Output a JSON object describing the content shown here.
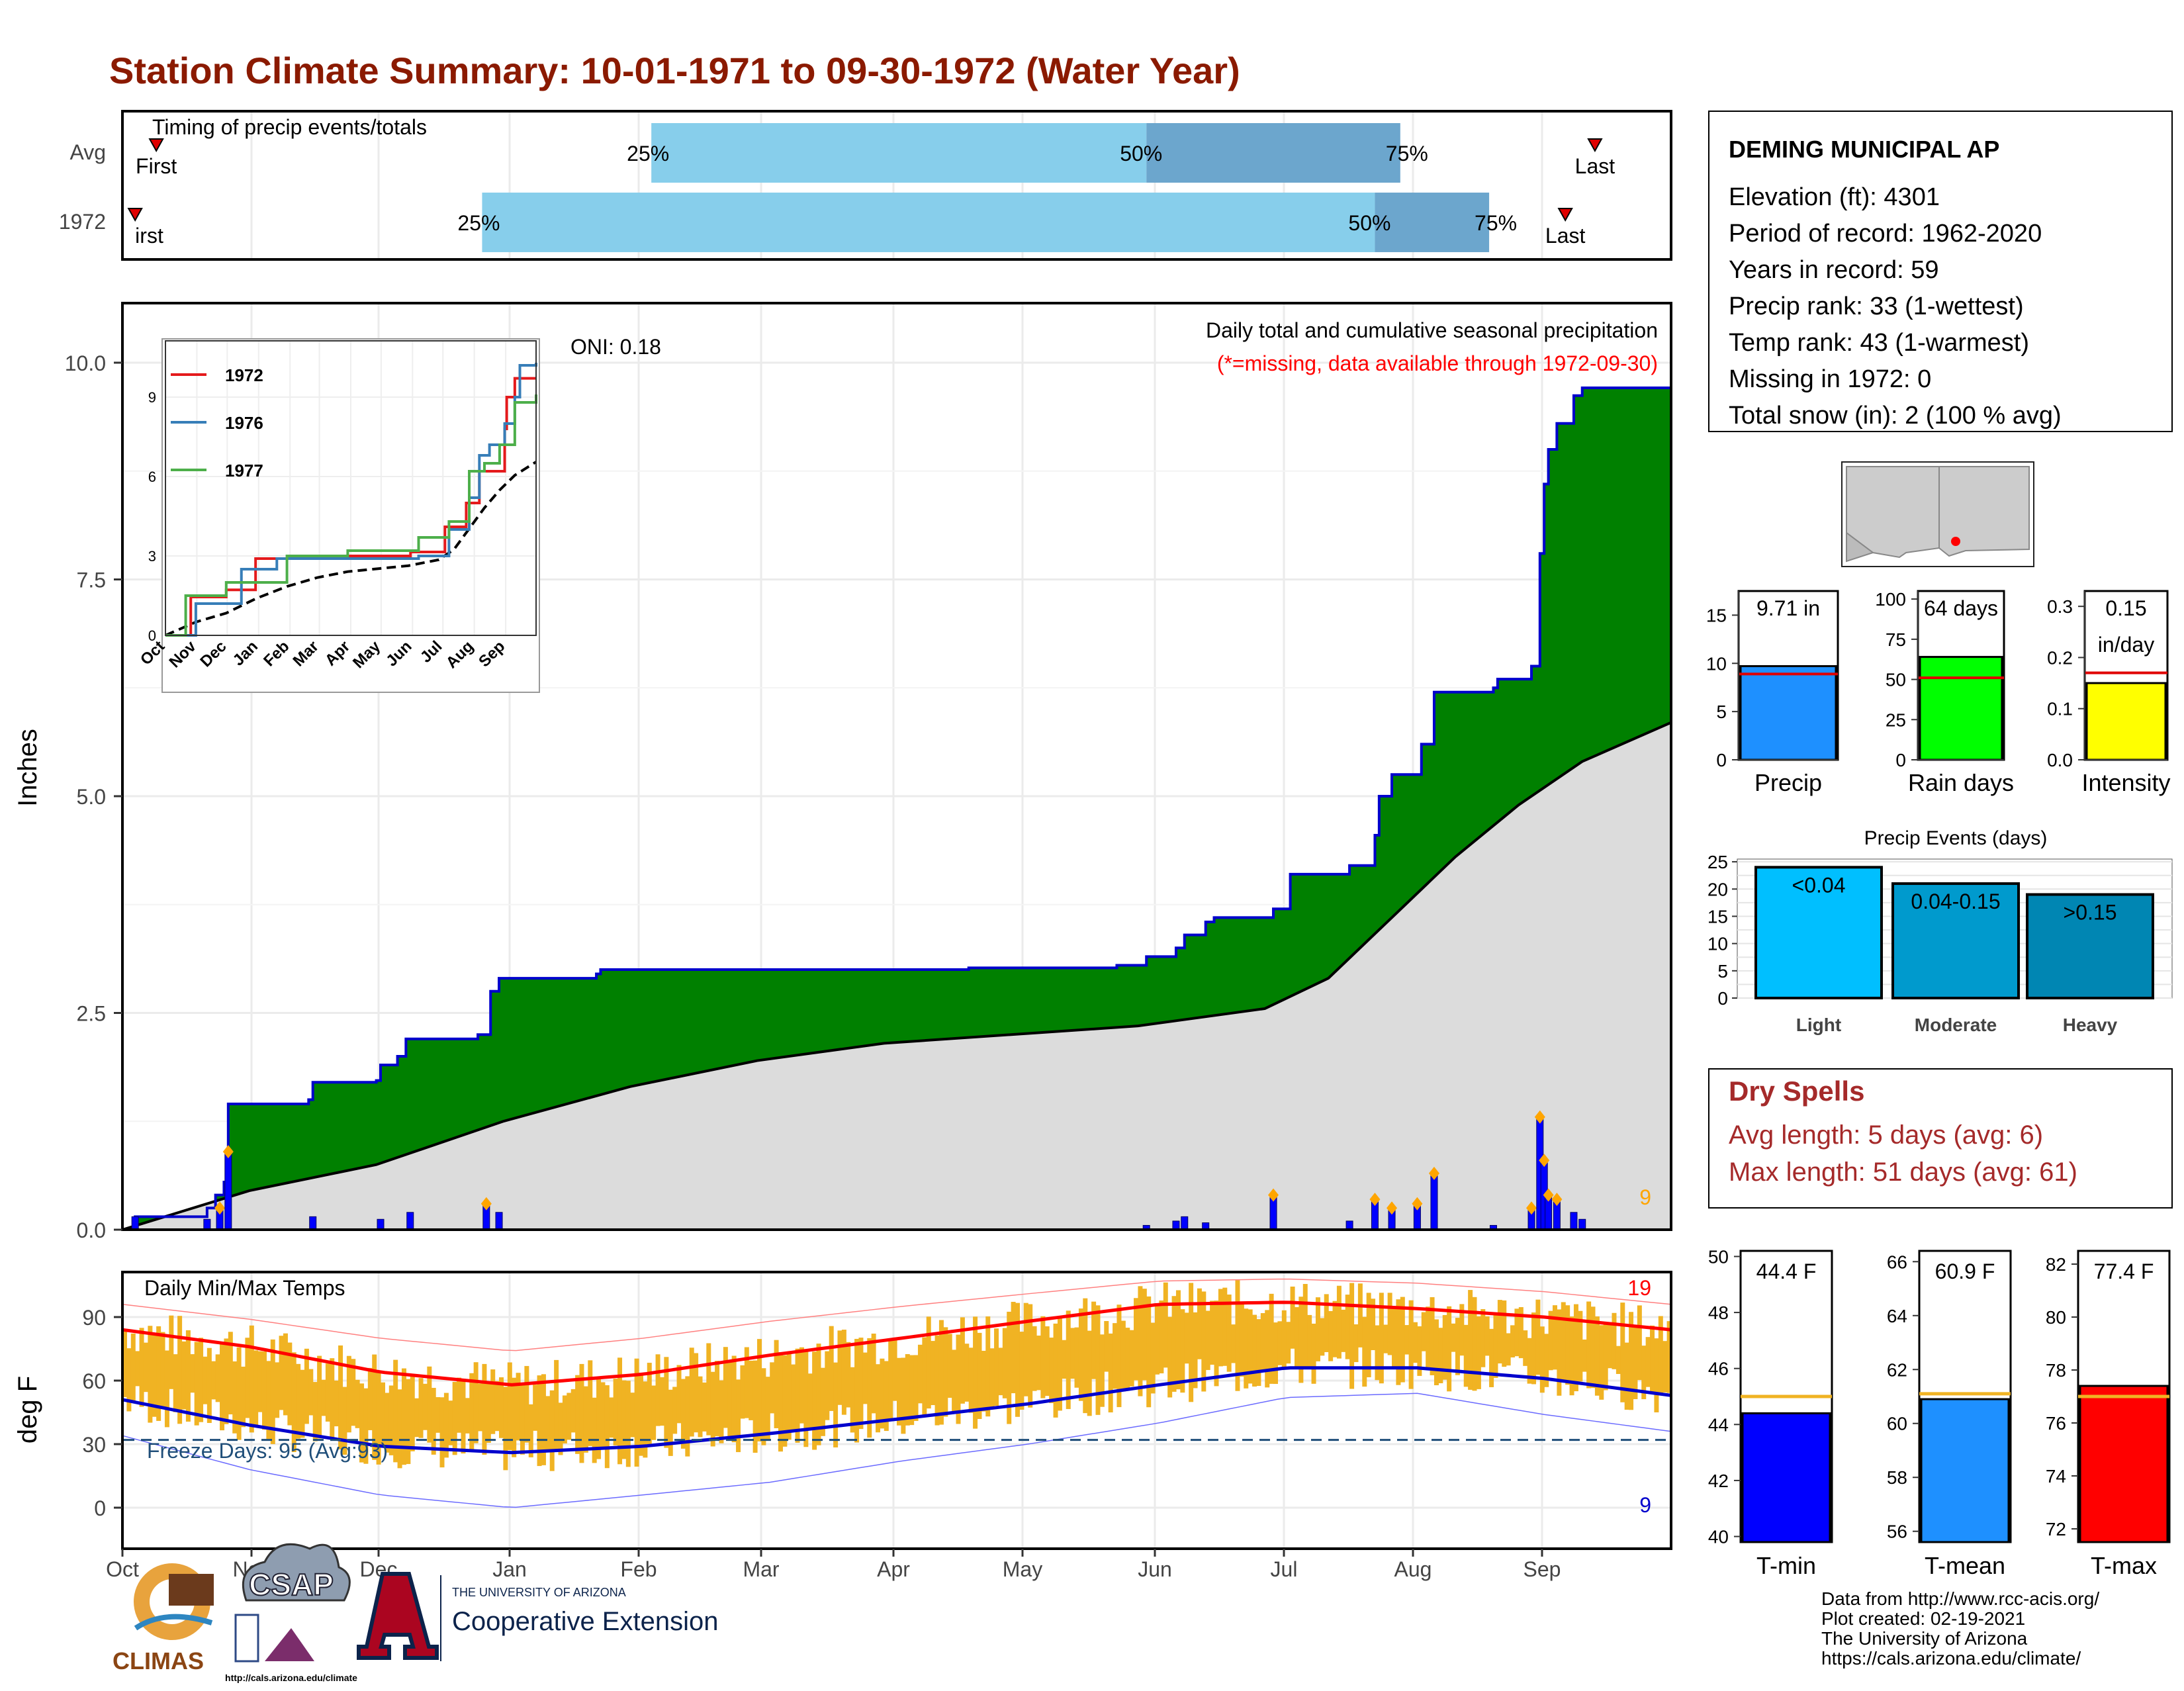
{
  "title": "Station Climate Summary: 10-01-1971 to 09-30-1972 (Water Year)",
  "colors": {
    "title": "#8B1A00",
    "precip_fill": "#008000",
    "precip_line": "#0000CC",
    "normal_fill": "#DCDCDC",
    "timing_light": "#87CEEB",
    "timing_dark": "#6CA6CD",
    "temp_bar": "#F0B323",
    "avg_max": "#FF0000",
    "avg_min": "#0000CC",
    "dry_spell_text": "#A52A2A"
  },
  "months": [
    "Oct",
    "Nov",
    "Dec",
    "Jan",
    "Feb",
    "Mar",
    "Apr",
    "May",
    "Jun",
    "Jul",
    "Aug",
    "Sep"
  ],
  "timing": {
    "panel_label": "Timing of precip events/totals",
    "row_labels": [
      "Avg",
      "1972"
    ],
    "first_label": "First",
    "last_label": "Last",
    "first_label_1972": "irst",
    "pct_labels": [
      "25%",
      "50%",
      "75%"
    ]
  },
  "precip_panel": {
    "title": "Daily total and cumulative seasonal precipitation",
    "subtitle": "(*=missing, data available through 1972-09-30)",
    "oni": "ONI: 0.18",
    "ylabel": "Inches",
    "yticks": [
      "0.0",
      "2.5",
      "5.0",
      "7.5",
      "10.0"
    ],
    "count_label": "9"
  },
  "inset": {
    "legend": [
      "1972",
      "1976",
      "1977"
    ],
    "yticks": [
      "0",
      "3",
      "6",
      "9"
    ]
  },
  "temp_panel": {
    "title": "Daily Min/Max Temps",
    "ylabel": "deg F",
    "yticks": [
      "0",
      "30",
      "60",
      "90"
    ],
    "freeze_label": "Freeze Days: 95 (Avg:93)",
    "max_count": "19",
    "min_count": "9"
  },
  "station": {
    "name": "DEMING MUNICIPAL AP",
    "lines": [
      "Elevation (ft): 4301",
      "Period of record: 1962-2020",
      "Years in record: 59",
      "Precip rank: 33 (1-wettest)",
      "Temp rank: 43 (1-warmest)",
      "Missing in 1972: 0",
      "Total snow (in): 2 (100 % avg)"
    ]
  },
  "mini_bars": [
    {
      "label": "Precip",
      "value_text": "9.71 in",
      "yticks": [
        "0",
        "5",
        "10",
        "15"
      ]
    },
    {
      "label": "Rain days",
      "value_text": "64 days",
      "yticks": [
        "0",
        "25",
        "50",
        "75",
        "100"
      ]
    },
    {
      "label": "Intensity",
      "value_text": "0.15",
      "value_text2": "in/day",
      "yticks": [
        "0.0",
        "0.1",
        "0.2",
        "0.3"
      ]
    }
  ],
  "events": {
    "title": "Precip Events (days)",
    "yticks": [
      "0",
      "5",
      "10",
      "15",
      "20",
      "25"
    ],
    "bars": [
      {
        "label": "Light",
        "text": "<0.04"
      },
      {
        "label": "Moderate",
        "text": "0.04-0.15"
      },
      {
        "label": "Heavy",
        "text": ">0.15"
      }
    ]
  },
  "dry_spells": {
    "title": "Dry Spells",
    "avg": "Avg length: 5 days (avg: 6)",
    "max": "Max length: 51 days (avg: 61)"
  },
  "temp_bars": [
    {
      "label": "T-min",
      "value_text": "44.4 F",
      "yticks": [
        "40",
        "42",
        "44",
        "46",
        "48",
        "50"
      ]
    },
    {
      "label": "T-mean",
      "value_text": "60.9 F",
      "yticks": [
        "56",
        "58",
        "60",
        "62",
        "64",
        "66"
      ]
    },
    {
      "label": "T-max",
      "value_text": "77.4 F",
      "yticks": [
        "72",
        "74",
        "76",
        "78",
        "80",
        "82"
      ]
    }
  ],
  "footer": {
    "lines": [
      "Data from http://www.rcc-acis.org/",
      "Plot created: 02-19-2021",
      "The University of Arizona",
      "https://cals.arizona.edu/climate/"
    ],
    "climas": "CLIMAS",
    "csap": "CSAP",
    "csap_url": "http://cals.arizona.edu/climate",
    "ua_small": "THE UNIVERSITY OF ARIZONA",
    "ua_big": "Cooperative Extension"
  },
  "chart_data": [
    {
      "type": "bar",
      "name": "timing",
      "categories": [
        "Avg",
        "1972"
      ],
      "series": [
        {
          "name": "Avg",
          "first_doy": 8,
          "p25_doy": 125,
          "p50_doy": 242,
          "p75_doy": 302,
          "last_doy": 348
        },
        {
          "name": "1972",
          "first_doy": 3,
          "p25_doy": 85,
          "p50_doy": 296,
          "p75_doy": 323,
          "last_doy": 341
        }
      ]
    },
    {
      "type": "area",
      "name": "cumulative precipitation",
      "ylim": [
        0,
        10.5
      ],
      "xlim_days": [
        0,
        366
      ],
      "cumulative_1972": [
        [
          0,
          0
        ],
        [
          3,
          0.15
        ],
        [
          20,
          0.25
        ],
        [
          22,
          0.4
        ],
        [
          24,
          0.55
        ],
        [
          25,
          1.45
        ],
        [
          44,
          1.5
        ],
        [
          45,
          1.7
        ],
        [
          60,
          1.72
        ],
        [
          61,
          1.9
        ],
        [
          65,
          2.0
        ],
        [
          67,
          2.2
        ],
        [
          84,
          2.25
        ],
        [
          87,
          2.75
        ],
        [
          89,
          2.9
        ],
        [
          112,
          2.95
        ],
        [
          113,
          3.0
        ],
        [
          150,
          3.0
        ],
        [
          200,
          3.02
        ],
        [
          235,
          3.05
        ],
        [
          242,
          3.15
        ],
        [
          249,
          3.25
        ],
        [
          251,
          3.4
        ],
        [
          256,
          3.55
        ],
        [
          258,
          3.6
        ],
        [
          272,
          3.7
        ],
        [
          276,
          4.1
        ],
        [
          290,
          4.2
        ],
        [
          296,
          4.55
        ],
        [
          297,
          5.0
        ],
        [
          300,
          5.25
        ],
        [
          307,
          5.6
        ],
        [
          310,
          6.2
        ],
        [
          324,
          6.25
        ],
        [
          325,
          6.35
        ],
        [
          333,
          6.5
        ],
        [
          335,
          7.8
        ],
        [
          336,
          8.6
        ],
        [
          337,
          9.0
        ],
        [
          339,
          9.3
        ],
        [
          343,
          9.62
        ],
        [
          345,
          9.71
        ],
        [
          366,
          9.71
        ]
      ],
      "normal_cumulative": [
        [
          0,
          0
        ],
        [
          30,
          0.45
        ],
        [
          60,
          0.75
        ],
        [
          90,
          1.25
        ],
        [
          120,
          1.65
        ],
        [
          150,
          1.95
        ],
        [
          180,
          2.15
        ],
        [
          210,
          2.25
        ],
        [
          240,
          2.35
        ],
        [
          270,
          2.55
        ],
        [
          285,
          2.9
        ],
        [
          300,
          3.6
        ],
        [
          315,
          4.3
        ],
        [
          330,
          4.9
        ],
        [
          345,
          5.4
        ],
        [
          366,
          5.85
        ]
      ],
      "daily_precip": [
        [
          3,
          0.15
        ],
        [
          20,
          0.12
        ],
        [
          23,
          0.25
        ],
        [
          25,
          0.9
        ],
        [
          45,
          0.15
        ],
        [
          61,
          0.12
        ],
        [
          68,
          0.2
        ],
        [
          86,
          0.3
        ],
        [
          89,
          0.2
        ],
        [
          242,
          0.05
        ],
        [
          249,
          0.1
        ],
        [
          251,
          0.15
        ],
        [
          256,
          0.08
        ],
        [
          272,
          0.4
        ],
        [
          290,
          0.1
        ],
        [
          296,
          0.35
        ],
        [
          300,
          0.25
        ],
        [
          306,
          0.3
        ],
        [
          310,
          0.65
        ],
        [
          324,
          0.05
        ],
        [
          333,
          0.25
        ],
        [
          335,
          1.3
        ],
        [
          336,
          0.8
        ],
        [
          337,
          0.4
        ],
        [
          339,
          0.35
        ],
        [
          343,
          0.2
        ],
        [
          345,
          0.12
        ]
      ],
      "ylabel": "Inches"
    },
    {
      "type": "line",
      "name": "inset cumulative comparison",
      "ylim": [
        0,
        10.5
      ],
      "series": [
        {
          "name": "1972",
          "points": [
            [
              0,
              0
            ],
            [
              25,
              1.45
            ],
            [
              60,
              1.72
            ],
            [
              89,
              2.9
            ],
            [
              150,
              3.0
            ],
            [
              242,
              3.15
            ],
            [
              276,
              4.1
            ],
            [
              297,
              5.0
            ],
            [
              310,
              6.2
            ],
            [
              335,
              7.8
            ],
            [
              337,
              9.0
            ],
            [
              345,
              9.71
            ],
            [
              366,
              9.71
            ]
          ]
        },
        {
          "name": "1976",
          "points": [
            [
              0,
              0
            ],
            [
              30,
              1.2
            ],
            [
              75,
              2.5
            ],
            [
              110,
              2.9
            ],
            [
              250,
              3.0
            ],
            [
              280,
              4.0
            ],
            [
              300,
              5.2
            ],
            [
              310,
              6.8
            ],
            [
              320,
              7.2
            ],
            [
              335,
              8.0
            ],
            [
              345,
              9.0
            ],
            [
              350,
              10.2
            ],
            [
              366,
              10.3
            ]
          ]
        },
        {
          "name": "1977",
          "points": [
            [
              0,
              0
            ],
            [
              20,
              1.5
            ],
            [
              60,
              2.0
            ],
            [
              120,
              3.0
            ],
            [
              180,
              3.2
            ],
            [
              250,
              3.7
            ],
            [
              280,
              4.3
            ],
            [
              300,
              6.2
            ],
            [
              315,
              6.5
            ],
            [
              330,
              7.2
            ],
            [
              345,
              8.8
            ],
            [
              366,
              9.1
            ]
          ]
        }
      ]
    },
    {
      "type": "bar",
      "name": "daily temperature",
      "ylim": [
        -20,
        112
      ],
      "ylabel": "deg F",
      "freeze_line": 32,
      "avg_max": [
        [
          0,
          84
        ],
        [
          30,
          76
        ],
        [
          61,
          64
        ],
        [
          92,
          58
        ],
        [
          123,
          63
        ],
        [
          153,
          72
        ],
        [
          184,
          80
        ],
        [
          214,
          88
        ],
        [
          245,
          96
        ],
        [
          275,
          97
        ],
        [
          306,
          94
        ],
        [
          336,
          90
        ],
        [
          366,
          84
        ]
      ],
      "avg_min": [
        [
          0,
          51
        ],
        [
          30,
          39
        ],
        [
          61,
          29
        ],
        [
          92,
          26
        ],
        [
          123,
          29
        ],
        [
          153,
          35
        ],
        [
          184,
          42
        ],
        [
          214,
          49
        ],
        [
          245,
          58
        ],
        [
          275,
          66
        ],
        [
          306,
          66
        ],
        [
          336,
          61
        ],
        [
          366,
          53
        ]
      ],
      "record_max": [
        [
          0,
          96
        ],
        [
          30,
          89
        ],
        [
          61,
          80
        ],
        [
          92,
          74
        ],
        [
          123,
          80
        ],
        [
          153,
          88
        ],
        [
          184,
          95
        ],
        [
          214,
          101
        ],
        [
          245,
          107
        ],
        [
          275,
          108
        ],
        [
          306,
          106
        ],
        [
          336,
          102
        ],
        [
          366,
          96
        ]
      ],
      "record_min": [
        [
          0,
          34
        ],
        [
          30,
          18
        ],
        [
          61,
          6
        ],
        [
          92,
          0
        ],
        [
          123,
          6
        ],
        [
          153,
          12
        ],
        [
          184,
          22
        ],
        [
          214,
          30
        ],
        [
          245,
          40
        ],
        [
          275,
          52
        ],
        [
          306,
          54
        ],
        [
          336,
          44
        ],
        [
          366,
          36
        ]
      ]
    },
    {
      "type": "bar",
      "name": "season totals",
      "categories": [
        "Precip",
        "Rain days",
        "Intensity"
      ],
      "values": [
        9.71,
        64,
        0.15
      ],
      "averages": [
        8.9,
        51,
        0.17
      ],
      "ylims": [
        [
          0,
          17.5
        ],
        [
          0,
          105
        ],
        [
          0,
          0.33
        ]
      ]
    },
    {
      "type": "bar",
      "name": "Precip Events (days)",
      "categories": [
        "Light",
        "Moderate",
        "Heavy"
      ],
      "values": [
        24,
        21,
        19
      ],
      "ylim": [
        0,
        25.5
      ]
    },
    {
      "type": "bar",
      "name": "mean temperatures",
      "categories": [
        "T-min",
        "T-mean",
        "T-max"
      ],
      "values": [
        44.4,
        60.9,
        77.4
      ],
      "averages": [
        45.0,
        61.1,
        77.0
      ],
      "ylims": [
        [
          39.8,
          50.2
        ],
        [
          55.6,
          66.4
        ],
        [
          71.5,
          82.5
        ]
      ]
    }
  ]
}
